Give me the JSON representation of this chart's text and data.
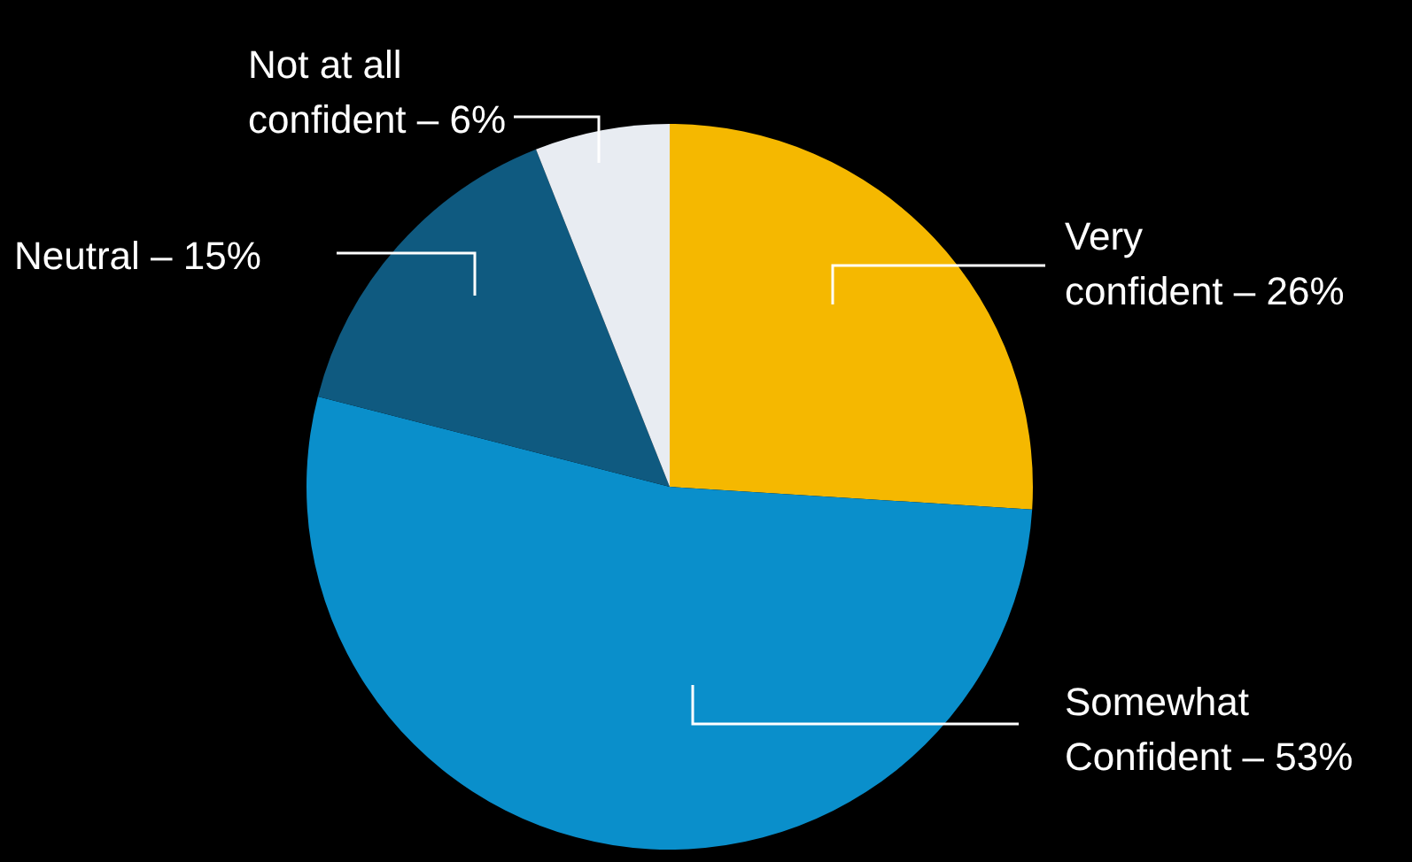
{
  "chart_data": {
    "type": "pie",
    "categories": [
      "Very confident",
      "Somewhat Confident",
      "Neutral",
      "Not at all confident"
    ],
    "values": [
      26,
      53,
      15,
      6
    ],
    "value_labels": [
      "26%",
      "53%",
      "15%",
      "6%"
    ],
    "colors": [
      "#f5b800",
      "#0a8fcb",
      "#0f5a80",
      "#e8ecf2"
    ],
    "legend": false
  }
}
